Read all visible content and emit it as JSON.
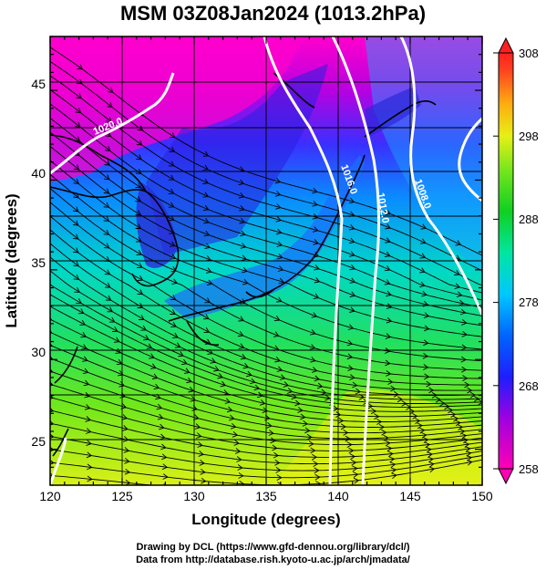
{
  "title": "MSM 03Z08Jan2024 (1013.2hPa)",
  "x_axis": {
    "label": "Longitude (degrees)",
    "range": [
      120,
      150
    ],
    "ticks": [
      120,
      125,
      130,
      135,
      140,
      145,
      150
    ]
  },
  "y_axis": {
    "label": "Latitude  (degrees)",
    "range": [
      22.5,
      47.5
    ],
    "ticks": [
      25,
      30,
      35,
      40,
      45
    ]
  },
  "colorbar": {
    "range": [
      258,
      308
    ],
    "ticks": [
      258,
      268,
      278,
      288,
      298,
      308
    ]
  },
  "contours": [
    {
      "label": "1020.0"
    },
    {
      "label": "1016.0"
    },
    {
      "label": "1012.0"
    },
    {
      "label": "1008.0"
    }
  ],
  "credit_line1": "Drawing by DCL (https://www.gfd-dennou.org/library/dcl/)",
  "credit_line2": "Data from http://database.rish.kyoto-u.ac.jp/arch/jmadata/"
}
